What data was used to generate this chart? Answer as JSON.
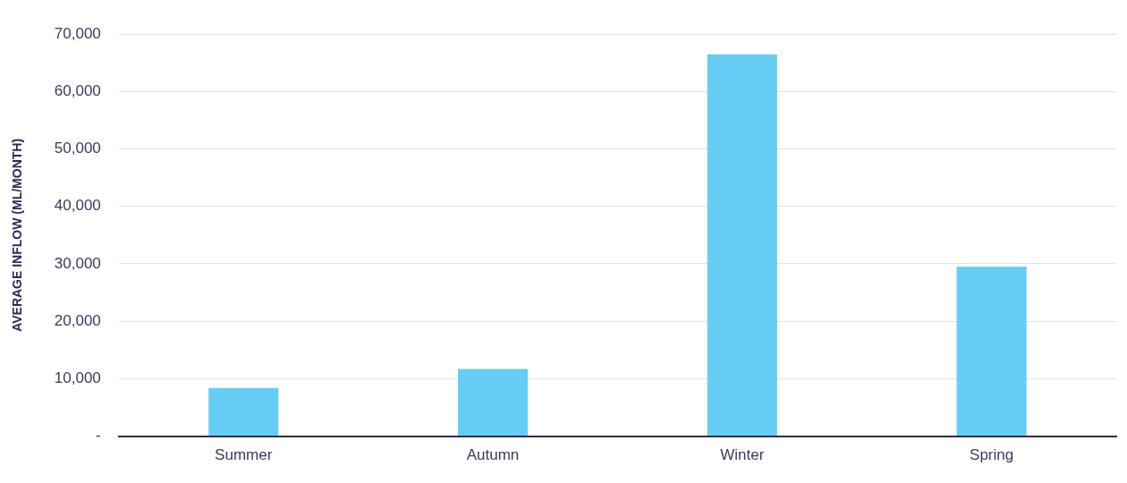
{
  "chart_data": {
    "type": "bar",
    "ylabel": "AVERAGE INFLOW (ML/MONTH)",
    "categories": [
      "Summer",
      "Autumn",
      "Winter",
      "Spring"
    ],
    "values": [
      8400,
      11700,
      66500,
      29500
    ],
    "color": "#66cdf5",
    "ylim": [
      0,
      70000
    ],
    "yticks": [
      {
        "value": 0,
        "label": "-"
      },
      {
        "value": 10000,
        "label": "10,000"
      },
      {
        "value": 20000,
        "label": "20,000"
      },
      {
        "value": 30000,
        "label": "30,000"
      },
      {
        "value": 40000,
        "label": "40,000"
      },
      {
        "value": 50000,
        "label": "50,000"
      },
      {
        "value": 60000,
        "label": "60,000"
      },
      {
        "value": 70000,
        "label": "70,000"
      }
    ],
    "grid": "y",
    "legend": false
  }
}
